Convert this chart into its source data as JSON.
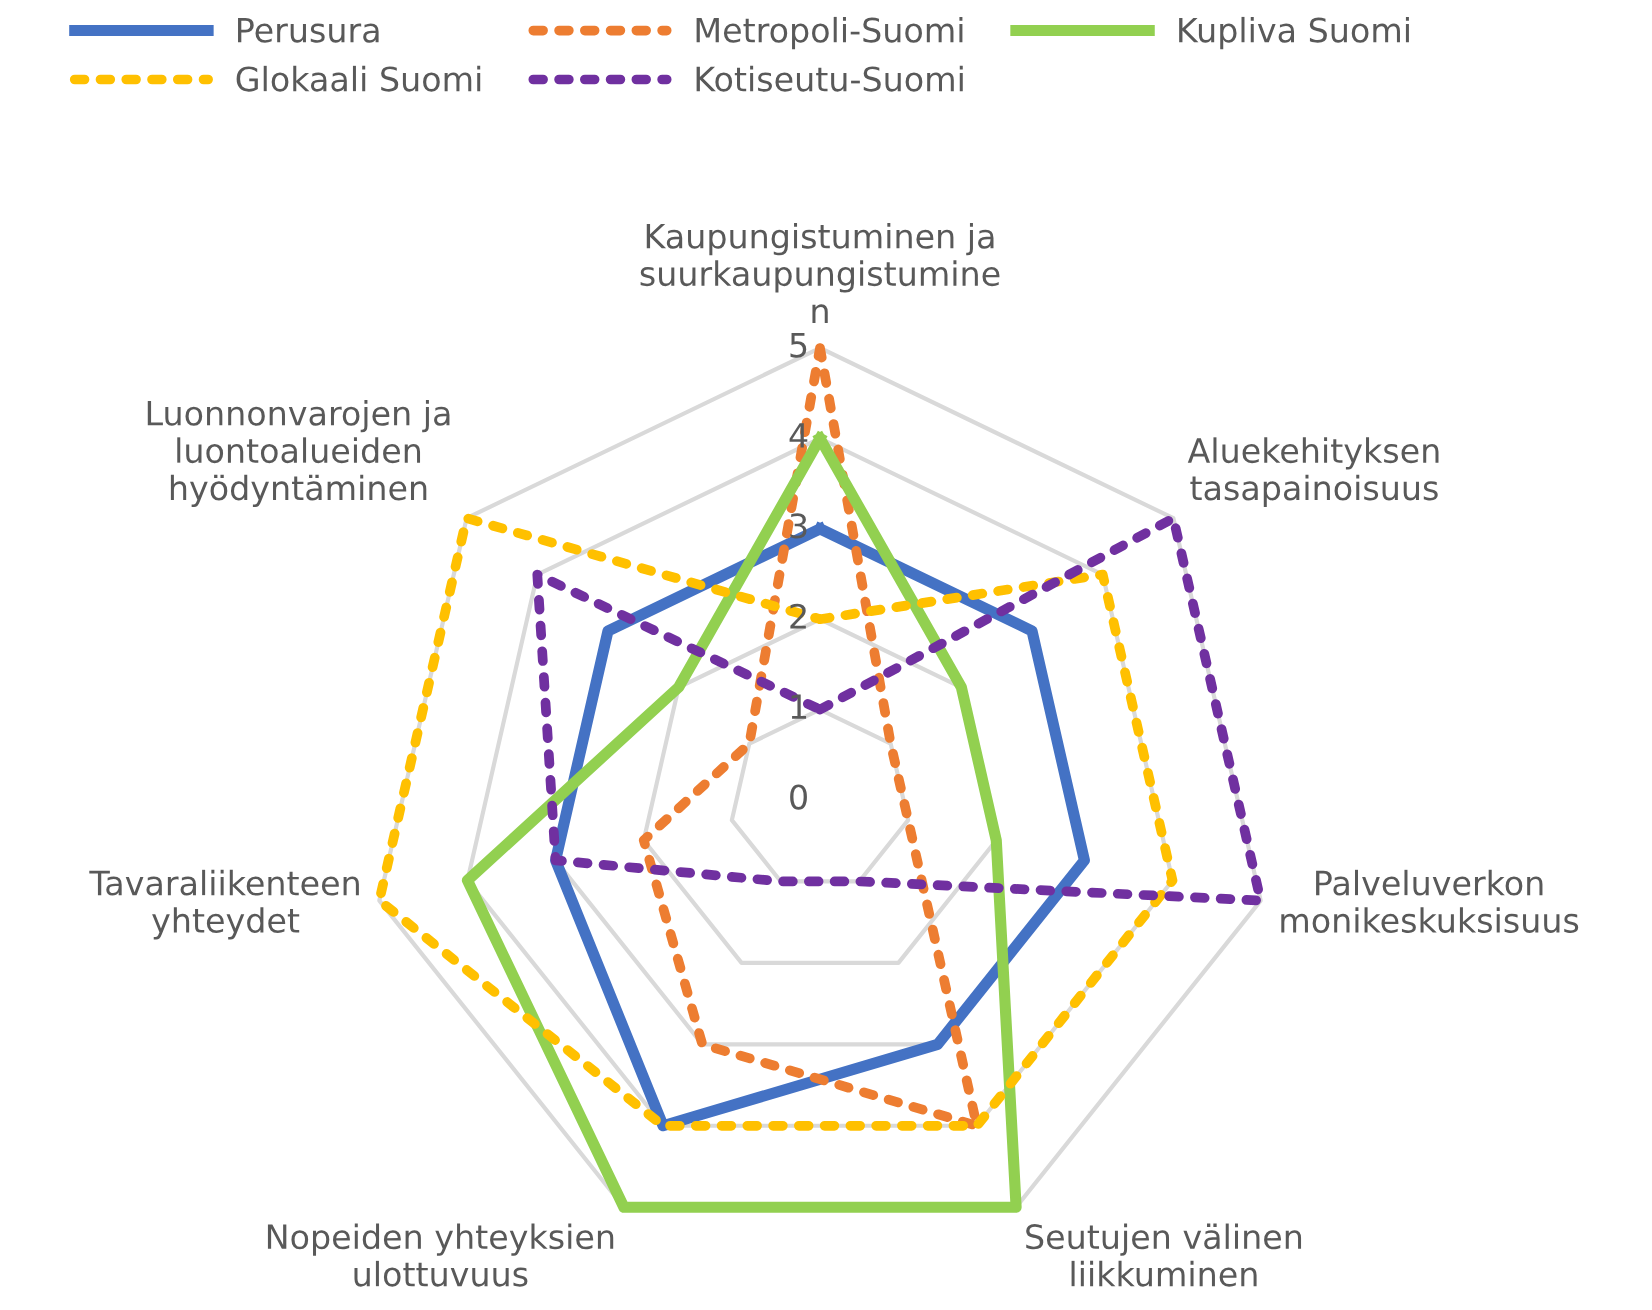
{
  "chart_data": {
    "type": "radar",
    "categories": [
      "Kaupungistuminen ja\nsuurkaupungistumine\nn",
      "Aluekehityksen\ntasapainoisuus",
      "Palveluverkon\nmonikeskuksisuus",
      "Seutujen välinen\nliikkuminen",
      "Nopeiden yhteyksien\nulottuvuus",
      "Tavaraliikenteen\nyhteydet",
      "Luonnonvarojen ja\nluontoalueiden\nhyödyntäminen"
    ],
    "series": [
      {
        "name": "Perusura",
        "color": "#4472c4",
        "line_style": "solid",
        "values": [
          3,
          3,
          3,
          3,
          4,
          3,
          3
        ]
      },
      {
        "name": "Metropoli-Suomi",
        "color": "#ed7d31",
        "line_style": "dotted",
        "values": [
          5,
          1,
          1,
          4,
          3,
          2,
          1
        ]
      },
      {
        "name": "Kupliva Suomi",
        "color": "#92d050",
        "line_style": "solid",
        "values": [
          4,
          2,
          2,
          5,
          5,
          4,
          2
        ]
      },
      {
        "name": "Glokaali Suomi",
        "color": "#ffc000",
        "line_style": "dotted",
        "values": [
          2,
          4,
          4,
          4,
          4,
          5,
          5
        ]
      },
      {
        "name": "Kotiseutu-Suomi",
        "color": "#7030a0",
        "line_style": "dotted",
        "values": [
          1,
          5,
          5,
          1,
          1,
          3,
          4
        ]
      }
    ],
    "ylim": [
      0,
      5
    ],
    "yticks": [
      0,
      1,
      2,
      3,
      4,
      5
    ],
    "grid": true,
    "legend": "top",
    "marker": "none"
  }
}
